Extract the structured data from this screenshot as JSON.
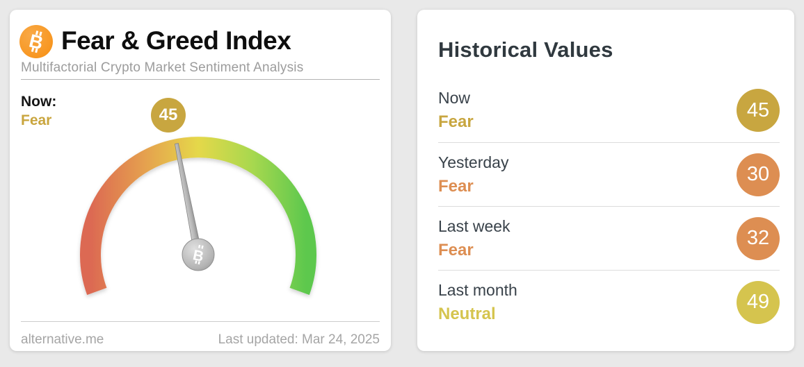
{
  "page": {
    "background": "#e9e9e9"
  },
  "gauge_card": {
    "logo_icon": "bitcoin-icon",
    "title": "Fear & Greed Index",
    "subtitle": "Multifactorial Crypto Market Sentiment Analysis",
    "now_label": "Now:",
    "footer": {
      "site": "alternative.me",
      "last_updated": "Last updated: Mar 24, 2025"
    }
  },
  "historical_card": {
    "title": "Historical Values"
  },
  "chart_data": {
    "type": "gauge",
    "title": "Fear & Greed Index",
    "min": 0,
    "max": 100,
    "value": 45,
    "classification": "Fear",
    "classification_color": "#c9a53e",
    "arc_sweep_degrees": 220,
    "arc_colors": [
      "#dc6952",
      "#e5a04f",
      "#e5d84a",
      "#a8d84f",
      "#5dc84e"
    ],
    "needle_color": "#a9a9a9",
    "badge_color": "#c8a640",
    "historical": [
      {
        "label": "Now",
        "classification": "Fear",
        "value": 45,
        "color": "#c8a640"
      },
      {
        "label": "Yesterday",
        "classification": "Fear",
        "value": 30,
        "color": "#dd8e52"
      },
      {
        "label": "Last week",
        "classification": "Fear",
        "value": 32,
        "color": "#dd8e52"
      },
      {
        "label": "Last month",
        "classification": "Neutral",
        "value": 49,
        "color": "#d5c44e"
      }
    ]
  }
}
